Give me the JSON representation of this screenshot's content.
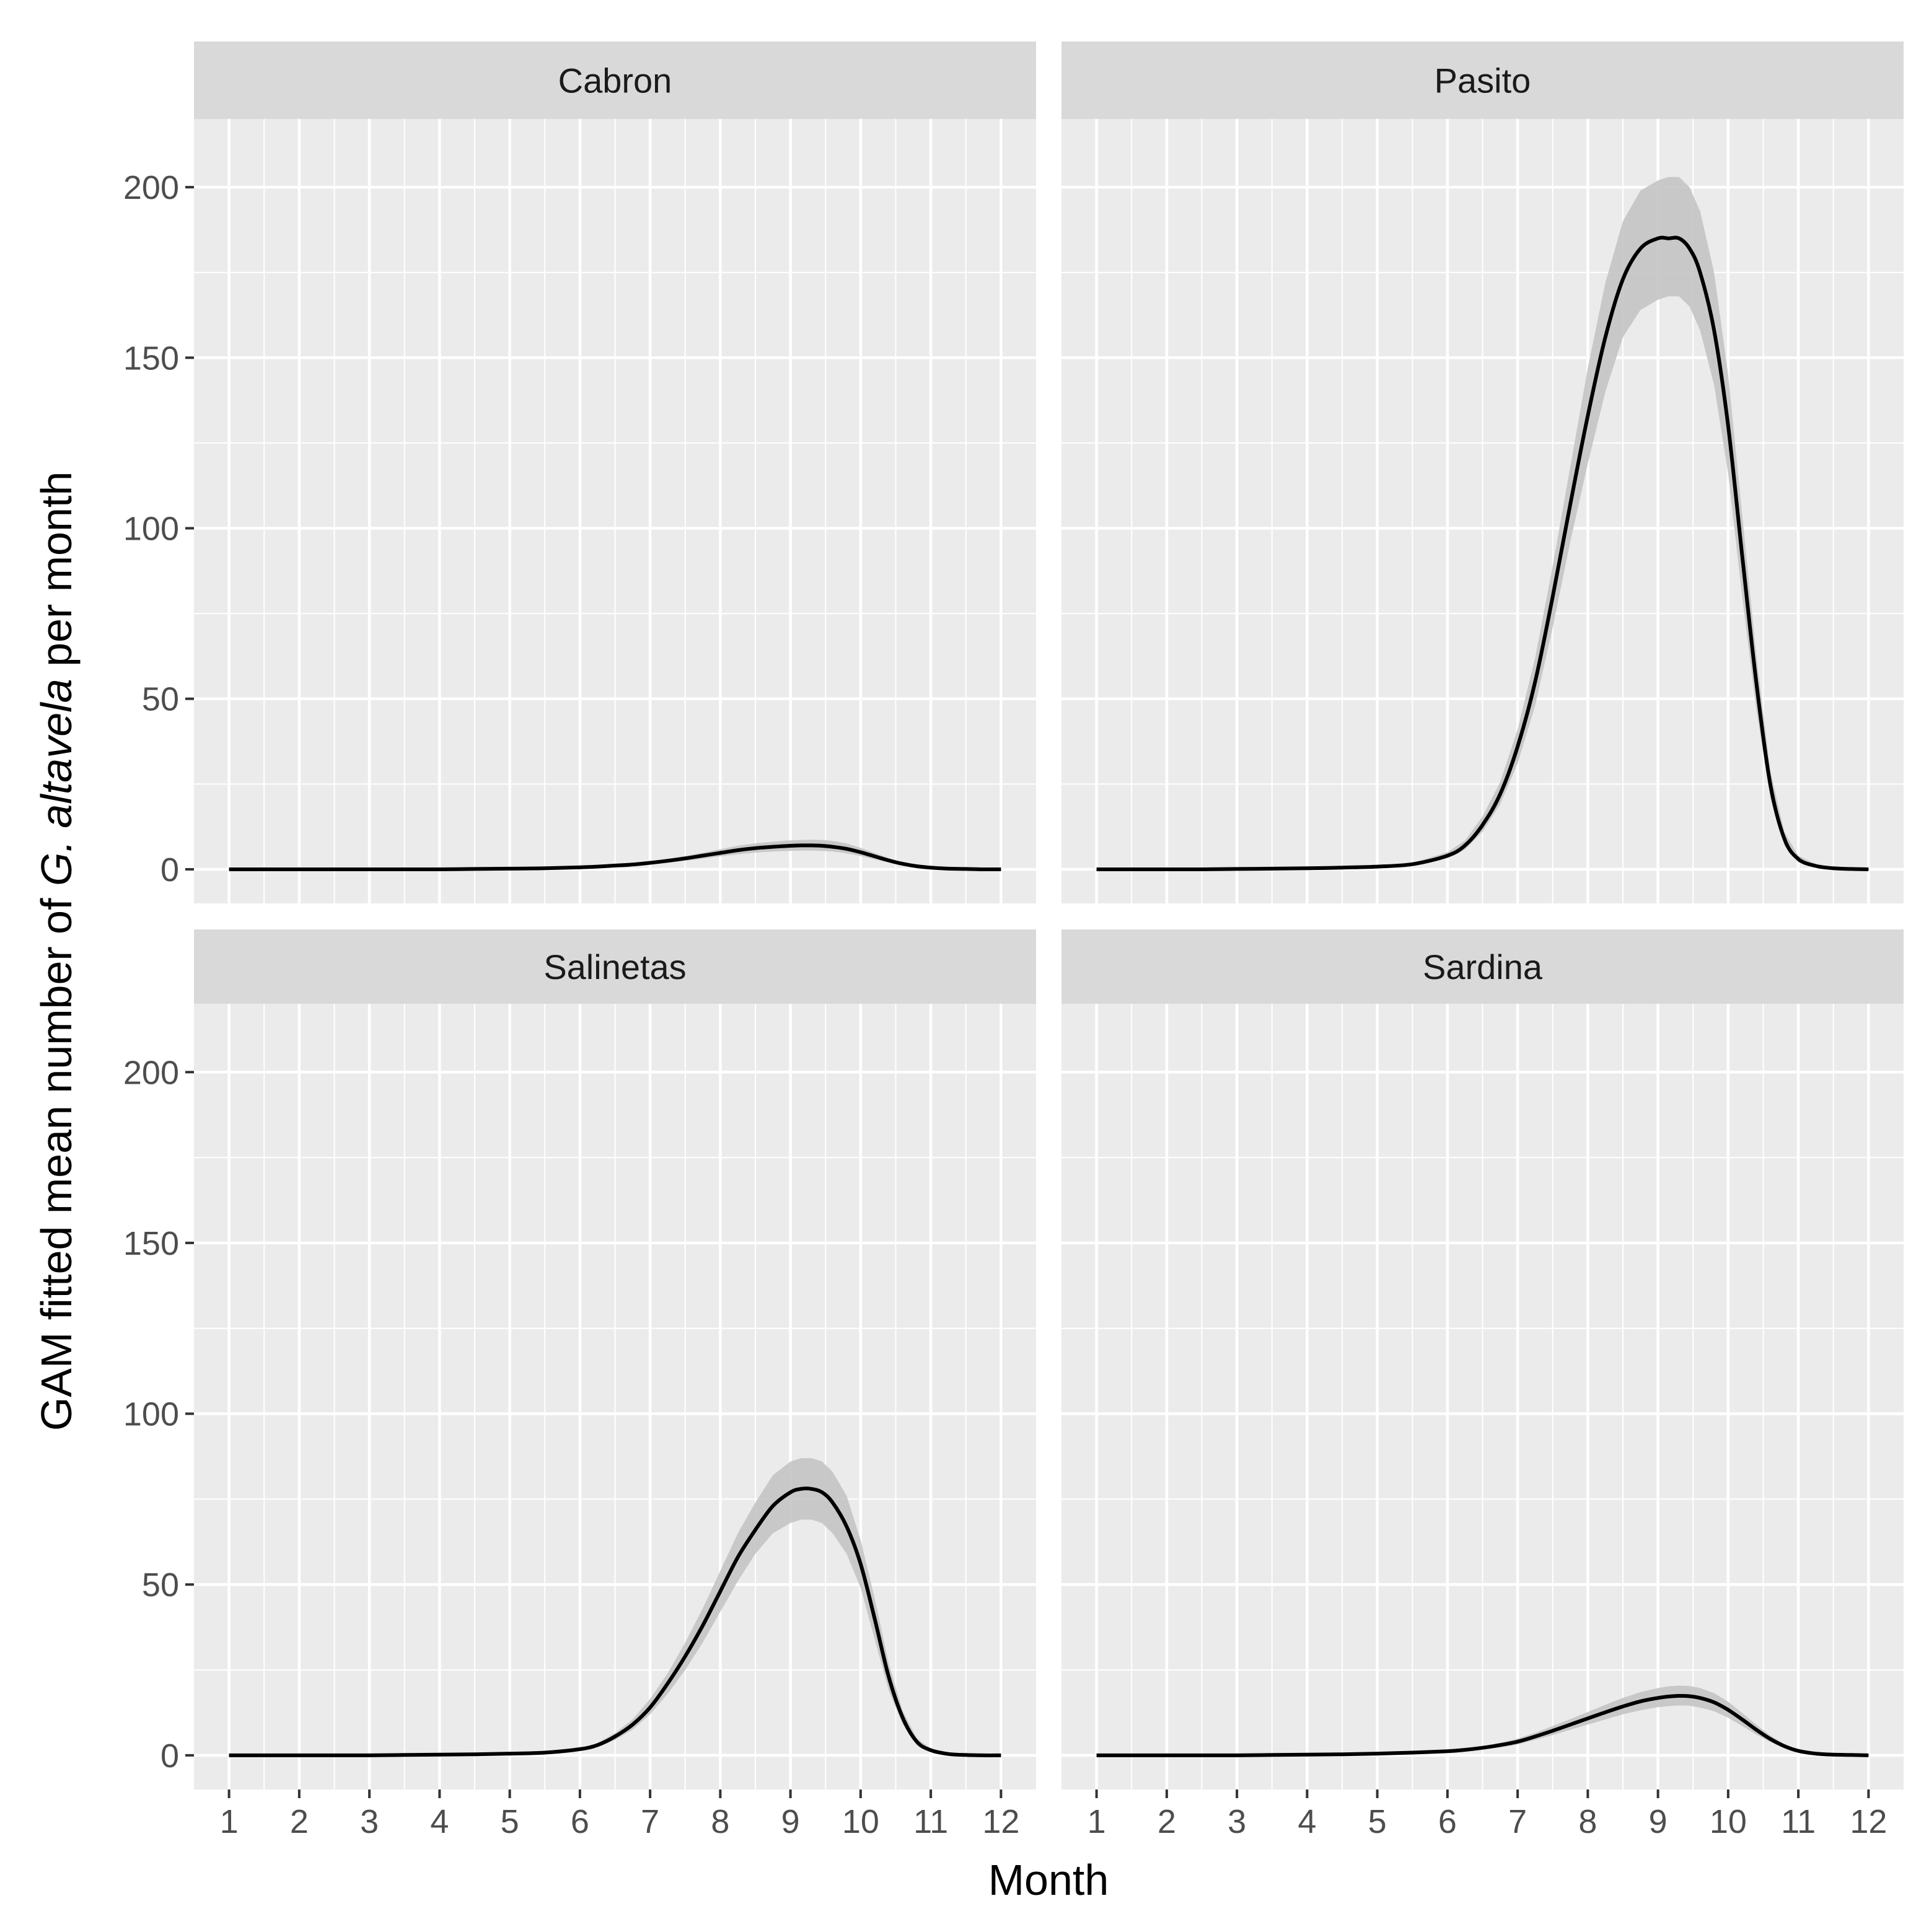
{
  "chart_data": {
    "type": "line",
    "layout": "facet-grid 2x2",
    "xlabel": "Month",
    "ylabel": {
      "parts": [
        {
          "text": "GAM fitted mean number of ",
          "italic": false
        },
        {
          "text": "G. altavela",
          "italic": true
        },
        {
          "text": " per month",
          "italic": false
        }
      ]
    },
    "xlim": [
      0.5,
      12.5
    ],
    "ylim": [
      -10,
      220
    ],
    "x_ticks": [
      1,
      2,
      3,
      4,
      5,
      6,
      7,
      8,
      9,
      10,
      11,
      12
    ],
    "y_ticks": [
      0,
      50,
      100,
      150,
      200
    ],
    "grid": true,
    "legend": "none",
    "colors": {
      "panel_background": "#ebebeb",
      "strip_background": "#d9d9d9",
      "grid": "#ffffff",
      "line": "#000000",
      "ribbon": "#c4c4c4",
      "tick_text": "#4d4d4d",
      "axis_title": "#000000"
    },
    "x": [
      1,
      1.5,
      2,
      2.5,
      3,
      3.5,
      4,
      4.5,
      5,
      5.5,
      6,
      6.25,
      6.5,
      6.75,
      7,
      7.25,
      7.5,
      7.75,
      8,
      8.25,
      8.5,
      8.75,
      9,
      9.15,
      9.3,
      9.45,
      9.6,
      9.8,
      10,
      10.2,
      10.4,
      10.6,
      10.8,
      11,
      11.25,
      11.5,
      11.75,
      12
    ],
    "panels": [
      {
        "strip": "Cabron",
        "fit": [
          0,
          0,
          0,
          0,
          0,
          0,
          0,
          0.1,
          0.2,
          0.3,
          0.6,
          0.8,
          1.1,
          1.4,
          1.9,
          2.5,
          3.2,
          4.0,
          4.8,
          5.6,
          6.2,
          6.6,
          6.9,
          7.0,
          7.0,
          6.9,
          6.6,
          6.0,
          5.0,
          3.8,
          2.6,
          1.6,
          0.9,
          0.5,
          0.2,
          0.1,
          0,
          0
        ],
        "lower": [
          0,
          0,
          0,
          0,
          0,
          0,
          0,
          0,
          0.1,
          0.2,
          0.4,
          0.6,
          0.8,
          1.0,
          1.4,
          1.9,
          2.5,
          3.1,
          3.8,
          4.4,
          4.9,
          5.2,
          5.4,
          5.5,
          5.5,
          5.4,
          5.2,
          4.7,
          3.9,
          2.9,
          2.0,
          1.2,
          0.7,
          0.3,
          0.1,
          0,
          0,
          0
        ],
        "upper": [
          0,
          0,
          0,
          0,
          0,
          0,
          0.1,
          0.2,
          0.3,
          0.5,
          0.8,
          1.0,
          1.4,
          1.8,
          2.4,
          3.1,
          3.9,
          4.9,
          5.9,
          6.9,
          7.6,
          8.1,
          8.5,
          8.6,
          8.7,
          8.6,
          8.3,
          7.6,
          6.3,
          4.8,
          3.3,
          2.1,
          1.2,
          0.6,
          0.3,
          0.1,
          0,
          0
        ]
      },
      {
        "strip": "Pasito",
        "fit": [
          0,
          0,
          0,
          0,
          0.1,
          0.2,
          0.3,
          0.5,
          0.8,
          1.5,
          4,
          7,
          13,
          22,
          36,
          55,
          80,
          107,
          133,
          156,
          173,
          182,
          185,
          185,
          185,
          182,
          175,
          158,
          130,
          92,
          55,
          25,
          9,
          3,
          1,
          0.3,
          0.1,
          0
        ],
        "lower": [
          0,
          0,
          0,
          0,
          0.1,
          0.1,
          0.2,
          0.4,
          0.6,
          1.2,
          3.2,
          5.8,
          11,
          19,
          31,
          48,
          71,
          96,
          119,
          140,
          156,
          164,
          167,
          168,
          168,
          165,
          158,
          142,
          116,
          80,
          47,
          21,
          7,
          2,
          0.5,
          0.2,
          0,
          0
        ],
        "upper": [
          0,
          0,
          0,
          0,
          0.1,
          0.2,
          0.4,
          0.6,
          1.0,
          1.9,
          5,
          8.5,
          15.5,
          25.5,
          41,
          62,
          89,
          118,
          147,
          172,
          190,
          199,
          202,
          203,
          203,
          200,
          193,
          175,
          145,
          104,
          63,
          29,
          11,
          4,
          1.5,
          0.5,
          0.2,
          0
        ]
      },
      {
        "strip": "Salinetas",
        "fit": [
          0,
          0,
          0,
          0,
          0,
          0.1,
          0.2,
          0.3,
          0.5,
          0.8,
          1.8,
          3,
          5.5,
          9,
          14,
          21,
          29,
          38,
          48,
          58,
          66,
          73,
          77,
          78,
          78,
          77,
          74,
          67,
          56,
          40,
          23,
          11,
          4,
          1.5,
          0.4,
          0.1,
          0,
          0
        ],
        "lower": [
          0,
          0,
          0,
          0,
          0,
          0.1,
          0.1,
          0.2,
          0.4,
          0.6,
          1.4,
          2.4,
          4.5,
          7.5,
          12,
          18,
          25,
          33,
          42,
          51,
          59,
          65,
          68,
          69,
          69,
          68,
          65,
          59,
          49,
          34,
          19,
          9,
          3,
          1,
          0.3,
          0,
          0,
          0
        ],
        "upper": [
          0,
          0,
          0,
          0,
          0,
          0.1,
          0.2,
          0.4,
          0.6,
          1.0,
          2.2,
          3.6,
          6.5,
          10.5,
          16.5,
          24,
          33,
          43,
          54,
          65,
          74,
          82,
          86,
          87,
          87,
          86,
          83,
          76,
          63,
          46,
          27,
          13,
          5,
          2,
          0.6,
          0.2,
          0,
          0
        ]
      },
      {
        "strip": "Sardina",
        "fit": [
          0,
          0,
          0,
          0,
          0,
          0.1,
          0.2,
          0.3,
          0.5,
          0.8,
          1.2,
          1.6,
          2.2,
          3.0,
          4.0,
          5.5,
          7.2,
          9.0,
          10.8,
          12.6,
          14.3,
          15.8,
          16.8,
          17.2,
          17.4,
          17.3,
          16.8,
          15.5,
          13.3,
          10.5,
          7.5,
          4.8,
          2.7,
          1.3,
          0.5,
          0.2,
          0.1,
          0
        ],
        "lower": [
          0,
          0,
          0,
          0,
          0,
          0,
          0.1,
          0.2,
          0.4,
          0.6,
          0.9,
          1.2,
          1.7,
          2.3,
          3.2,
          4.5,
          5.9,
          7.5,
          9.0,
          10.5,
          12.0,
          13.2,
          14.1,
          14.4,
          14.6,
          14.5,
          14.0,
          12.9,
          11.0,
          8.6,
          6.1,
          3.9,
          2.1,
          1.0,
          0.4,
          0.1,
          0,
          0
        ],
        "upper": [
          0,
          0,
          0,
          0,
          0.1,
          0.2,
          0.3,
          0.4,
          0.6,
          1.0,
          1.5,
          2.0,
          2.7,
          3.7,
          4.9,
          6.6,
          8.6,
          10.6,
          12.7,
          14.8,
          16.8,
          18.5,
          19.7,
          20.2,
          20.4,
          20.3,
          19.7,
          18.2,
          15.7,
          12.4,
          9.0,
          5.8,
          3.3,
          1.6,
          0.7,
          0.3,
          0.1,
          0
        ]
      }
    ]
  }
}
